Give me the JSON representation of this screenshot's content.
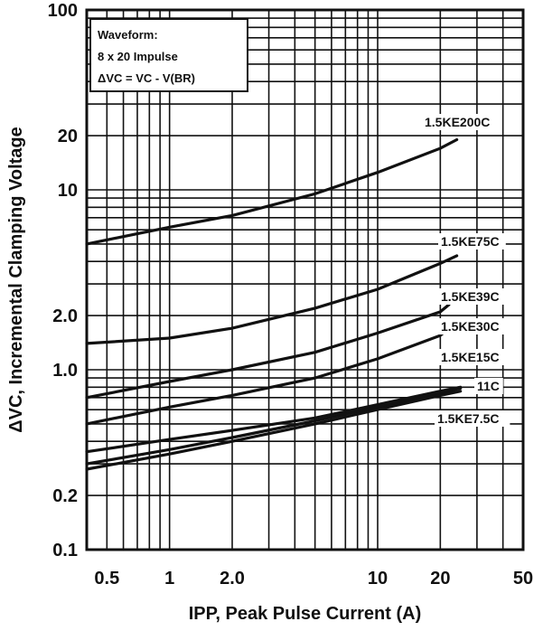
{
  "chart_data": {
    "type": "line",
    "title": "",
    "xlabel": "IPP, Peak Pulse Current (A)",
    "ylabel": "ΔVC, Incremental Clamping Voltage",
    "x_scale": "log",
    "y_scale": "log",
    "xlim": [
      0.4,
      50
    ],
    "ylim": [
      0.1,
      100
    ],
    "grid": true,
    "x_ticks": [
      "0.5",
      "1",
      "2.0",
      "10",
      "20",
      "50"
    ],
    "y_ticks": [
      "100",
      "20",
      "10",
      "2.0",
      "1.0",
      "0.2",
      "0.1"
    ],
    "annotation": {
      "line1": "Waveform:",
      "line2": "8 x 20 Impulse",
      "line3": "ΔVC = VC - V(BR)"
    },
    "series": [
      {
        "name": "1.5KE200C",
        "x": [
          0.4,
          1,
          2,
          5,
          10,
          20,
          24
        ],
        "y": [
          5.0,
          6.2,
          7.2,
          9.5,
          12.5,
          17,
          19
        ]
      },
      {
        "name": "1.5KE75C",
        "x": [
          0.4,
          1,
          2,
          5,
          10,
          20,
          24
        ],
        "y": [
          1.4,
          1.5,
          1.7,
          2.2,
          2.8,
          3.9,
          4.3
        ]
      },
      {
        "name": "1.5KE39C",
        "x": [
          0.4,
          1,
          2,
          5,
          10,
          20,
          22
        ],
        "y": [
          0.7,
          0.86,
          1.0,
          1.25,
          1.6,
          2.1,
          2.3
        ]
      },
      {
        "name": "1.5KE30C",
        "x": [
          0.4,
          1,
          2,
          5,
          10,
          20,
          22
        ],
        "y": [
          0.5,
          0.62,
          0.72,
          0.9,
          1.15,
          1.55,
          1.7
        ]
      },
      {
        "name": "1.5KE15C",
        "x": [
          0.4,
          1,
          2,
          5,
          10,
          20,
          25
        ],
        "y": [
          0.35,
          0.41,
          0.46,
          0.54,
          0.64,
          0.76,
          0.8
        ]
      },
      {
        "name": "11C",
        "x": [
          0.4,
          1,
          2,
          5,
          10,
          20,
          25
        ],
        "y": [
          0.3,
          0.36,
          0.42,
          0.52,
          0.62,
          0.74,
          0.79
        ]
      },
      {
        "name": "1.5KE7.5C",
        "x": [
          0.4,
          1,
          2,
          5,
          10,
          20,
          25
        ],
        "y": [
          0.28,
          0.34,
          0.4,
          0.5,
          0.6,
          0.72,
          0.76
        ]
      }
    ]
  }
}
